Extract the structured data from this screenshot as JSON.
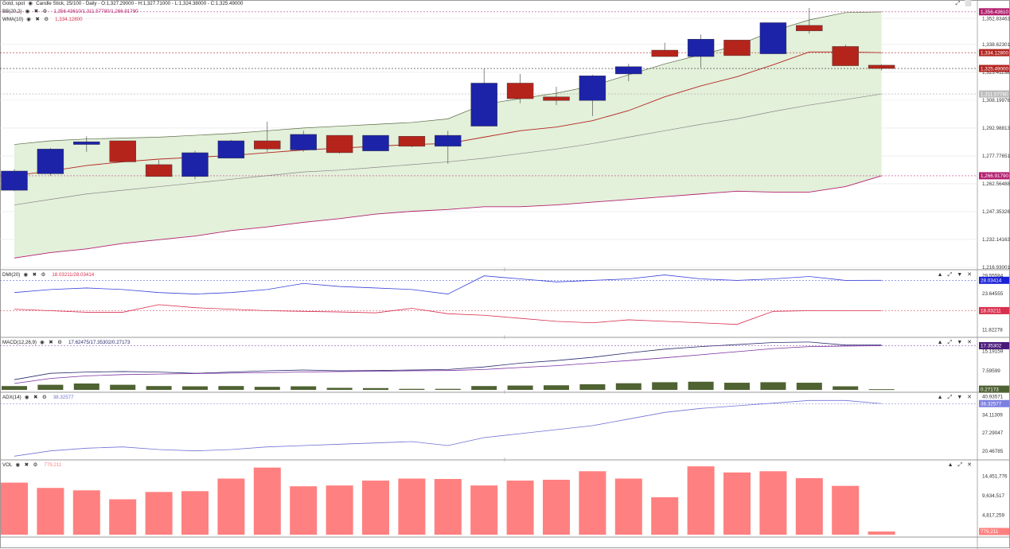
{
  "colors": {
    "bull": "#1c23a8",
    "bear": "#b5241b",
    "bb_fill": "#e3f0da",
    "bb_upper": "#5a6a45",
    "bb_lower": "#b3206f",
    "bb_mid": "#888888",
    "wma": "#b32621",
    "di_plus": "#3b43d8",
    "di_minus": "#d8304e",
    "macd": "#2a2a6e",
    "signal": "#7a2ea0",
    "hist": "#4f6232",
    "adx": "#6f73d4",
    "vol": "#ff8080",
    "grid": "#e6e6e6",
    "axis": "#444444"
  },
  "main": {
    "symbol_line": "Gold, spot",
    "info": "Candle Stick, 25/100 - Daily - O:1,327.29000 - H:1,327.71000 - L:1,324.38000 - C:1,325.49000",
    "bb_label": "BB(20,2)",
    "bb_values": "1,356.43610/1,311.57780/1,266.91790",
    "wma_label": "WMA(10)",
    "wma_value": "1,334.12800",
    "ticks": [
      "1,352.83463",
      "1,338.62301",
      "1,323.41138",
      "1,308.19976",
      "1,292.98813",
      "1,277.77651",
      "1,262.56488",
      "1,247.35326",
      "1,232.14163",
      "1,216.93001"
    ],
    "tags": [
      "1,356.43610",
      "1,334.12800",
      "1,325.49000",
      "1,311.57780",
      "1,266.91790"
    ],
    "ylim": [
      1216.93,
      1362.0
    ]
  },
  "dmi": {
    "label": "DMI(20)",
    "values": "18.03211/28.03414",
    "ticks": [
      "29.55584",
      "23.64555",
      "17.73416",
      "11.82278"
    ],
    "tags": [
      "28.03414",
      "18.03211"
    ],
    "ylim": [
      10.0,
      31.0
    ]
  },
  "macd": {
    "label": "MACD(12,26,9)",
    "values": "17.62475/17.35302/0.27173",
    "ticks": [
      "15.19159",
      "7.59599"
    ],
    "tags": [
      "17.35302",
      "0.27173"
    ],
    "ylim": [
      0.0,
      20.0
    ]
  },
  "adx": {
    "label": "ADX(14)",
    "value": "38.32577",
    "ticks": [
      "40.93571",
      "34.11309",
      "27.29047",
      "20.46785"
    ],
    "tag": "38.32577",
    "ylim": [
      18.0,
      42.0
    ]
  },
  "vol": {
    "label": "VOL",
    "value": "779,211",
    "ticks": [
      "14,451,776",
      "9,634,517",
      "4,817,259"
    ],
    "tag": "779,211",
    "ylim": [
      0,
      18000000
    ]
  },
  "chart_data": [
    {
      "type": "candlestick",
      "title": "Gold, spot",
      "series": [
        {
          "name": "Price",
          "ohlc": [
            [
              1259.0,
              1270.5,
              1258.5,
              1269.5
            ],
            [
              1268.0,
              1282.0,
              1267.0,
              1281.5
            ],
            [
              1284.0,
              1288.5,
              1280.0,
              1285.5
            ],
            [
              1286.0,
              1286.0,
              1274.5,
              1274.5
            ],
            [
              1273.0,
              1275.5,
              1267.0,
              1266.5
            ],
            [
              1266.5,
              1280.5,
              1265.0,
              1279.5
            ],
            [
              1276.5,
              1286.5,
              1276.5,
              1286.0
            ],
            [
              1286.0,
              1296.5,
              1280.0,
              1281.5
            ],
            [
              1281.0,
              1291.5,
              1280.0,
              1289.5
            ],
            [
              1289.0,
              1289.0,
              1279.0,
              1279.5
            ],
            [
              1280.5,
              1289.0,
              1280.5,
              1289.0
            ],
            [
              1288.5,
              1288.5,
              1282.5,
              1283.0
            ],
            [
              1283.0,
              1291.5,
              1273.5,
              1289.0
            ],
            [
              1294.0,
              1325.5,
              1294.0,
              1317.5
            ],
            [
              1317.5,
              1322.5,
              1306.5,
              1309.0
            ],
            [
              1310.0,
              1315.5,
              1305.5,
              1308.0
            ],
            [
              1308.0,
              1322.0,
              1299.5,
              1321.5
            ],
            [
              1322.5,
              1328.0,
              1318.5,
              1326.5
            ],
            [
              1335.5,
              1339.5,
              1333.0,
              1332.0
            ],
            [
              1332.0,
              1344.0,
              1326.0,
              1341.5
            ],
            [
              1341.0,
              1341.0,
              1333.0,
              1332.5
            ],
            [
              1333.5,
              1350.5,
              1333.5,
              1350.5
            ],
            [
              1349.0,
              1358.5,
              1344.5,
              1346.0
            ],
            [
              1337.5,
              1338.5,
              1327.5,
              1327.0
            ],
            [
              1327.29,
              1327.71,
              1324.38,
              1325.49
            ]
          ]
        },
        {
          "name": "BB Upper",
          "values": [
            1284,
            1286,
            1287,
            1287.5,
            1288,
            1289,
            1290,
            1291.5,
            1293,
            1294,
            1295,
            1296,
            1298,
            1306,
            1309,
            1312,
            1316,
            1322,
            1328,
            1333,
            1338,
            1346,
            1352,
            1356,
            1356.4
          ]
        },
        {
          "name": "BB Middle",
          "values": [
            1251,
            1254,
            1257,
            1259,
            1261,
            1263,
            1265,
            1267,
            1269,
            1270,
            1271.5,
            1273,
            1274.5,
            1276.5,
            1279,
            1281.5,
            1284.5,
            1288,
            1291.5,
            1295,
            1298,
            1302,
            1305.5,
            1308.5,
            1311.6
          ]
        },
        {
          "name": "BB Lower",
          "values": [
            1222,
            1225,
            1227,
            1230,
            1232,
            1234,
            1237,
            1239,
            1241.5,
            1243.5,
            1246,
            1247.5,
            1248.5,
            1250,
            1250,
            1251,
            1252.5,
            1254,
            1255.5,
            1257,
            1258.5,
            1258,
            1258,
            1261,
            1266.9
          ]
        },
        {
          "name": "WMA",
          "values": [
            1267,
            1269.5,
            1272.5,
            1274.5,
            1276,
            1277,
            1278,
            1279.5,
            1281,
            1282,
            1283,
            1284,
            1284.5,
            1288,
            1291.5,
            1293.5,
            1297,
            1302.5,
            1310,
            1316,
            1321,
            1327.5,
            1334.5,
            1334.5,
            1334.13
          ]
        }
      ]
    },
    {
      "type": "line",
      "title": "DMI(20)",
      "series": [
        {
          "name": "+DI",
          "values": [
            24.0,
            25.0,
            25.5,
            25.0,
            24.0,
            23.5,
            24.0,
            25.0,
            27.0,
            26.0,
            25.5,
            25.0,
            23.5,
            29.5,
            28.5,
            27.5,
            28.0,
            28.5,
            29.8,
            28.5,
            28.0,
            28.5,
            29.3,
            28.0,
            28.03
          ]
        },
        {
          "name": "-DI",
          "values": [
            18.5,
            18.0,
            17.5,
            17.5,
            20.0,
            19.0,
            18.5,
            18.0,
            17.8,
            17.6,
            17.3,
            18.8,
            17.0,
            16.5,
            15.5,
            14.5,
            14.0,
            15.0,
            14.5,
            14.0,
            13.5,
            17.8,
            18.0,
            18.03,
            18.03
          ]
        }
      ]
    },
    {
      "type": "bar",
      "title": "MACD(12,26,9)",
      "series": [
        {
          "name": "MACD",
          "values": [
            4.0,
            6.5,
            7.0,
            7.2,
            7.0,
            6.5,
            7.0,
            7.5,
            7.8,
            7.5,
            7.6,
            7.8,
            8.0,
            9.0,
            10.5,
            11.5,
            12.8,
            14.5,
            16.0,
            17.0,
            17.8,
            18.6,
            18.8,
            17.6,
            17.62
          ]
        },
        {
          "name": "Signal",
          "values": [
            2.5,
            4.5,
            5.5,
            6.0,
            6.2,
            6.4,
            6.6,
            6.8,
            7.0,
            7.2,
            7.3,
            7.5,
            7.6,
            8.0,
            8.8,
            9.5,
            10.5,
            11.5,
            12.6,
            13.8,
            15.0,
            16.2,
            17.0,
            17.2,
            17.35
          ]
        },
        {
          "name": "Histogram",
          "values": [
            1.5,
            2.0,
            2.5,
            2.0,
            1.5,
            1.4,
            1.5,
            1.2,
            1.4,
            0.8,
            0.7,
            0.4,
            0.4,
            1.5,
            1.7,
            1.8,
            2.2,
            2.6,
            3.0,
            3.2,
            2.8,
            3.0,
            2.8,
            1.4,
            0.27
          ]
        }
      ]
    },
    {
      "type": "line",
      "title": "ADX(14)",
      "series": [
        {
          "name": "ADX",
          "values": [
            18.5,
            20.5,
            21.5,
            22.0,
            21.0,
            20.5,
            21.0,
            22.0,
            22.5,
            23.0,
            23.5,
            24.0,
            22.5,
            25.5,
            27.0,
            28.5,
            30.0,
            32.5,
            35.0,
            36.5,
            37.5,
            38.5,
            39.5,
            39.5,
            38.33
          ]
        }
      ]
    },
    {
      "type": "bar",
      "title": "VOL",
      "series": [
        {
          "name": "VOL",
          "values": [
            12800000,
            11500000,
            10900000,
            8700000,
            10500000,
            10700000,
            13800000,
            16500000,
            11900000,
            12100000,
            13300000,
            13800000,
            13700000,
            12100000,
            13300000,
            13500000,
            15600000,
            13800000,
            9200000,
            16800000,
            15300000,
            15600000,
            13900000,
            12000000,
            779211
          ]
        }
      ]
    }
  ]
}
